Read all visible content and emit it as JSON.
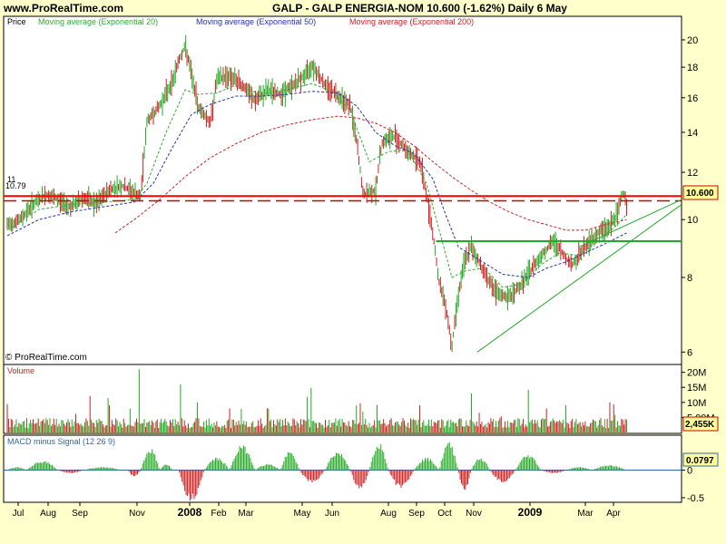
{
  "header": {
    "site": "www.ProRealTime.com",
    "title": "GALP - GALP ENERGIA-NOM   10.600 (-1.62%)   Daily  6 May"
  },
  "price_panel": {
    "label": "Price",
    "legend": [
      {
        "label": "Moving average (Exponential 20)",
        "color": "#33aa33"
      },
      {
        "label": "Moving average (Exponential 50)",
        "color": "#2233aa"
      },
      {
        "label": "Moving average (Exponential 200)",
        "color": "#cc2222"
      }
    ],
    "last_price_box": "10.600",
    "level_label": "11",
    "level_label2": "10.79",
    "watermark": "© ProRealTime.com"
  },
  "volume_panel": {
    "label": "Volume",
    "last_value_box": "2,455K",
    "color": "#cc2222"
  },
  "macd_panel": {
    "label": "MACD minus Signal (12 26 9)",
    "last_value_box": "0.0797",
    "color": "#3366aa"
  },
  "x_axis": {
    "labels": [
      "Jul",
      "Aug",
      "Sep",
      "Nov",
      "2008",
      "Feb",
      "Mar",
      "May",
      "Jun",
      "Aug",
      "Sep",
      "Oct",
      "Nov",
      "2009",
      "Mar",
      "Apr"
    ],
    "bold": [
      "2008",
      "2009"
    ]
  },
  "chart_data": [
    {
      "type": "line",
      "name": "price",
      "title": "GALP - GALP ENERGIA-NOM",
      "scale": "log",
      "ylim": [
        5.8,
        21
      ],
      "yticks": [
        "20",
        "18",
        "16",
        "14",
        "12",
        "10",
        "8",
        "6"
      ],
      "ytick_values": [
        20,
        18,
        16,
        14,
        12,
        10,
        8,
        6
      ],
      "horizontal_lines": [
        {
          "value": 10.95,
          "style": "solid",
          "color": "#ff0000"
        },
        {
          "value": 10.75,
          "style": "dashed",
          "color": "#cc0000"
        },
        {
          "value": 9.2,
          "style": "solid",
          "color": "#22aa22"
        }
      ],
      "trendline": {
        "from": [
          0.74,
          6.0
        ],
        "to": [
          1.0,
          10.6
        ],
        "color": "#22aa22"
      },
      "price_points": [
        [
          0.0,
          9.8
        ],
        [
          0.02,
          10.0
        ],
        [
          0.04,
          10.6
        ],
        [
          0.06,
          11.0
        ],
        [
          0.08,
          10.8
        ],
        [
          0.1,
          10.5
        ],
        [
          0.12,
          10.9
        ],
        [
          0.14,
          10.6
        ],
        [
          0.16,
          11.2
        ],
        [
          0.18,
          11.4
        ],
        [
          0.2,
          11.1
        ],
        [
          0.21,
          10.9
        ],
        [
          0.22,
          14.6
        ],
        [
          0.24,
          15.5
        ],
        [
          0.26,
          17.0
        ],
        [
          0.27,
          18.5
        ],
        [
          0.28,
          19.5
        ],
        [
          0.29,
          17.5
        ],
        [
          0.3,
          15.5
        ],
        [
          0.32,
          14.5
        ],
        [
          0.33,
          17.2
        ],
        [
          0.35,
          17.4
        ],
        [
          0.37,
          16.8
        ],
        [
          0.39,
          15.8
        ],
        [
          0.41,
          16.5
        ],
        [
          0.43,
          16.2
        ],
        [
          0.45,
          16.8
        ],
        [
          0.47,
          17.5
        ],
        [
          0.48,
          18.2
        ],
        [
          0.5,
          16.8
        ],
        [
          0.52,
          16.2
        ],
        [
          0.54,
          15.5
        ],
        [
          0.55,
          13.5
        ],
        [
          0.56,
          11.0
        ],
        [
          0.58,
          11.2
        ],
        [
          0.59,
          13.5
        ],
        [
          0.61,
          13.8
        ],
        [
          0.63,
          13.0
        ],
        [
          0.65,
          12.5
        ],
        [
          0.66,
          11.0
        ],
        [
          0.67,
          9.5
        ],
        [
          0.68,
          7.8
        ],
        [
          0.69,
          7.2
        ],
        [
          0.7,
          6.1
        ],
        [
          0.71,
          7.5
        ],
        [
          0.72,
          8.5
        ],
        [
          0.73,
          9.0
        ],
        [
          0.75,
          8.2
        ],
        [
          0.77,
          7.5
        ],
        [
          0.79,
          7.4
        ],
        [
          0.81,
          7.8
        ],
        [
          0.82,
          8.1
        ],
        [
          0.84,
          8.7
        ],
        [
          0.86,
          9.2
        ],
        [
          0.88,
          8.6
        ],
        [
          0.89,
          8.4
        ],
        [
          0.91,
          9.0
        ],
        [
          0.93,
          9.5
        ],
        [
          0.95,
          9.8
        ],
        [
          0.96,
          10.2
        ],
        [
          0.97,
          11.2
        ],
        [
          0.975,
          10.6
        ]
      ],
      "ema20_points": [
        [
          0.0,
          9.6
        ],
        [
          0.05,
          10.4
        ],
        [
          0.1,
          10.6
        ],
        [
          0.15,
          10.7
        ],
        [
          0.2,
          10.8
        ],
        [
          0.22,
          11.5
        ],
        [
          0.25,
          14.0
        ],
        [
          0.28,
          16.5
        ],
        [
          0.3,
          16.2
        ],
        [
          0.33,
          16.3
        ],
        [
          0.36,
          16.8
        ],
        [
          0.4,
          16.2
        ],
        [
          0.44,
          16.5
        ],
        [
          0.48,
          16.9
        ],
        [
          0.51,
          16.4
        ],
        [
          0.54,
          15.2
        ],
        [
          0.57,
          12.5
        ],
        [
          0.6,
          13.0
        ],
        [
          0.63,
          13.1
        ],
        [
          0.66,
          11.5
        ],
        [
          0.68,
          9.6
        ],
        [
          0.7,
          8.0
        ],
        [
          0.72,
          8.2
        ],
        [
          0.75,
          8.3
        ],
        [
          0.78,
          7.7
        ],
        [
          0.81,
          7.8
        ],
        [
          0.84,
          8.4
        ],
        [
          0.87,
          8.8
        ],
        [
          0.9,
          8.7
        ],
        [
          0.93,
          9.2
        ],
        [
          0.96,
          9.8
        ],
        [
          0.975,
          10.2
        ]
      ],
      "ema50_points": [
        [
          0.0,
          9.4
        ],
        [
          0.05,
          10.0
        ],
        [
          0.1,
          10.3
        ],
        [
          0.15,
          10.5
        ],
        [
          0.2,
          10.7
        ],
        [
          0.23,
          11.5
        ],
        [
          0.26,
          13.2
        ],
        [
          0.29,
          15.0
        ],
        [
          0.32,
          15.6
        ],
        [
          0.36,
          16.1
        ],
        [
          0.4,
          16.1
        ],
        [
          0.44,
          16.2
        ],
        [
          0.48,
          16.4
        ],
        [
          0.52,
          16.3
        ],
        [
          0.55,
          15.5
        ],
        [
          0.58,
          14.0
        ],
        [
          0.61,
          13.3
        ],
        [
          0.64,
          12.9
        ],
        [
          0.67,
          11.7
        ],
        [
          0.69,
          10.2
        ],
        [
          0.71,
          9.0
        ],
        [
          0.74,
          8.6
        ],
        [
          0.78,
          8.1
        ],
        [
          0.82,
          8.0
        ],
        [
          0.85,
          8.3
        ],
        [
          0.88,
          8.5
        ],
        [
          0.91,
          8.8
        ],
        [
          0.94,
          9.1
        ],
        [
          0.975,
          9.5
        ]
      ],
      "ema200_points": [
        [
          0.17,
          9.5
        ],
        [
          0.2,
          10.0
        ],
        [
          0.24,
          10.8
        ],
        [
          0.28,
          11.8
        ],
        [
          0.32,
          12.7
        ],
        [
          0.36,
          13.4
        ],
        [
          0.4,
          14.0
        ],
        [
          0.44,
          14.4
        ],
        [
          0.48,
          14.7
        ],
        [
          0.52,
          14.9
        ],
        [
          0.55,
          14.8
        ],
        [
          0.58,
          14.5
        ],
        [
          0.61,
          14.0
        ],
        [
          0.64,
          13.3
        ],
        [
          0.67,
          12.5
        ],
        [
          0.7,
          11.8
        ],
        [
          0.73,
          11.2
        ],
        [
          0.76,
          10.7
        ],
        [
          0.79,
          10.3
        ],
        [
          0.82,
          10.0
        ],
        [
          0.85,
          9.8
        ],
        [
          0.88,
          9.6
        ],
        [
          0.91,
          9.6
        ],
        [
          0.94,
          9.8
        ],
        [
          0.975,
          10.0
        ]
      ]
    },
    {
      "type": "bar",
      "name": "volume",
      "ylim": [
        0,
        22
      ],
      "yticks": [
        "20M",
        "15M",
        "10M",
        "5.00M"
      ],
      "ytick_values": [
        20,
        15,
        10,
        5
      ],
      "spikes": [
        [
          0.207,
          21
        ],
        [
          0.272,
          16
        ],
        [
          0.55,
          9
        ],
        [
          0.73,
          13
        ],
        [
          0.56,
          7
        ],
        [
          0.35,
          8
        ],
        [
          0.41,
          8
        ]
      ],
      "baseline": 2.4
    },
    {
      "type": "bar",
      "name": "macd_minus_signal",
      "ylim": [
        -0.55,
        0.6
      ],
      "yticks": [
        "0",
        "-0.5"
      ],
      "ytick_values": [
        0,
        -0.5
      ],
      "segments": [
        [
          0.0,
          0.03,
          0.05
        ],
        [
          0.03,
          0.08,
          0.15
        ],
        [
          0.08,
          0.12,
          -0.05
        ],
        [
          0.12,
          0.18,
          0.05
        ],
        [
          0.19,
          0.21,
          -0.1
        ],
        [
          0.21,
          0.24,
          0.35
        ],
        [
          0.24,
          0.26,
          0.1
        ],
        [
          0.27,
          0.31,
          -0.5
        ],
        [
          0.31,
          0.35,
          0.2
        ],
        [
          0.35,
          0.39,
          0.4
        ],
        [
          0.39,
          0.43,
          0.1
        ],
        [
          0.43,
          0.46,
          0.3
        ],
        [
          0.46,
          0.5,
          -0.2
        ],
        [
          0.5,
          0.54,
          0.3
        ],
        [
          0.54,
          0.57,
          -0.3
        ],
        [
          0.57,
          0.6,
          0.45
        ],
        [
          0.6,
          0.64,
          -0.3
        ],
        [
          0.64,
          0.68,
          0.2
        ],
        [
          0.68,
          0.71,
          0.45
        ],
        [
          0.71,
          0.73,
          -0.35
        ],
        [
          0.73,
          0.76,
          0.2
        ],
        [
          0.76,
          0.8,
          -0.2
        ],
        [
          0.8,
          0.84,
          0.25
        ],
        [
          0.84,
          0.88,
          -0.05
        ],
        [
          0.88,
          0.92,
          0.05
        ],
        [
          0.92,
          0.975,
          0.08
        ]
      ]
    }
  ]
}
